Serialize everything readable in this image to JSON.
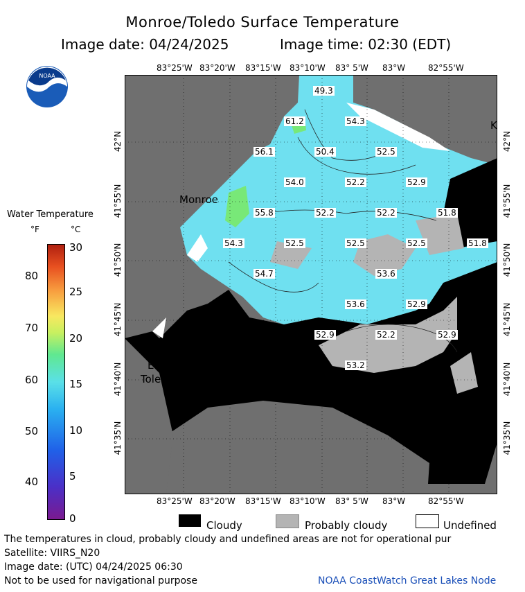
{
  "title": "Monroe/Toledo Surface Temperature",
  "subtitle": {
    "date_label": "Image date: 04/24/2025",
    "time_label": "Image time: 02:30 (EDT)"
  },
  "logo": {
    "text": "NOAA"
  },
  "colorbar": {
    "title": "Water Temperature",
    "unit_f": "°F",
    "unit_c": "°C",
    "f_ticks": [
      "80",
      "70",
      "60",
      "50",
      "40"
    ],
    "c_ticks": [
      "30",
      "25",
      "20",
      "15",
      "10",
      "5",
      "0"
    ]
  },
  "axes": {
    "top_lon": [
      "83°25'W",
      "83°20'W",
      "83°15'W",
      "83°10'W",
      "83° 5'W",
      "83°W",
      "82°55'W"
    ],
    "bottom_lon": [
      "83°25'W",
      "83°20'W",
      "83°15'W",
      "83°10'W",
      "83° 5'W",
      "83°W",
      "82°55'W"
    ],
    "left_lat": [
      "42°N",
      "41°55'N",
      "41°50'N",
      "41°45'N",
      "41°40'N",
      "41°35'N"
    ],
    "right_lat": [
      "42°N",
      "41°55'N",
      "41°50'N",
      "41°45'N",
      "41°40'N",
      "41°35'N"
    ]
  },
  "places": {
    "monroe": "Monroe",
    "east_toledo_1": "East",
    "east_toledo_2": "Toledo",
    "k": "K"
  },
  "temps": [
    "49.3",
    "61.2",
    "54.3",
    "56.1",
    "50.4",
    "52.5",
    "54.0",
    "52.2",
    "52.9",
    "55.8",
    "52.2",
    "52.2",
    "51.8",
    "54.3",
    "52.5",
    "52.5",
    "52.5",
    "51.8",
    "54.7",
    "53.6",
    "53.6",
    "52.9",
    "52.9",
    "52.2",
    "52.9",
    "53.2"
  ],
  "legend": {
    "cloudy": "Cloudy",
    "probably_cloudy": "Probably cloudy",
    "undefined": "Undefined"
  },
  "footer": {
    "line1": "The temperatures in cloud, probably cloudy and undefined areas are not for operational pur",
    "line2": "Satellite: VIIRS_N20",
    "line3": "Image date: (UTC) 04/24/2025  06:30",
    "line4": "Not to be used for navigational purpose",
    "credit": "NOAA CoastWatch Great Lakes Node"
  },
  "colors": {
    "land": "#6f6f6f",
    "cloudy": "#000000",
    "probably_cloudy": "#b4b4b4",
    "water_cool": "#6fe0f0",
    "water_warm": "#78e878"
  }
}
